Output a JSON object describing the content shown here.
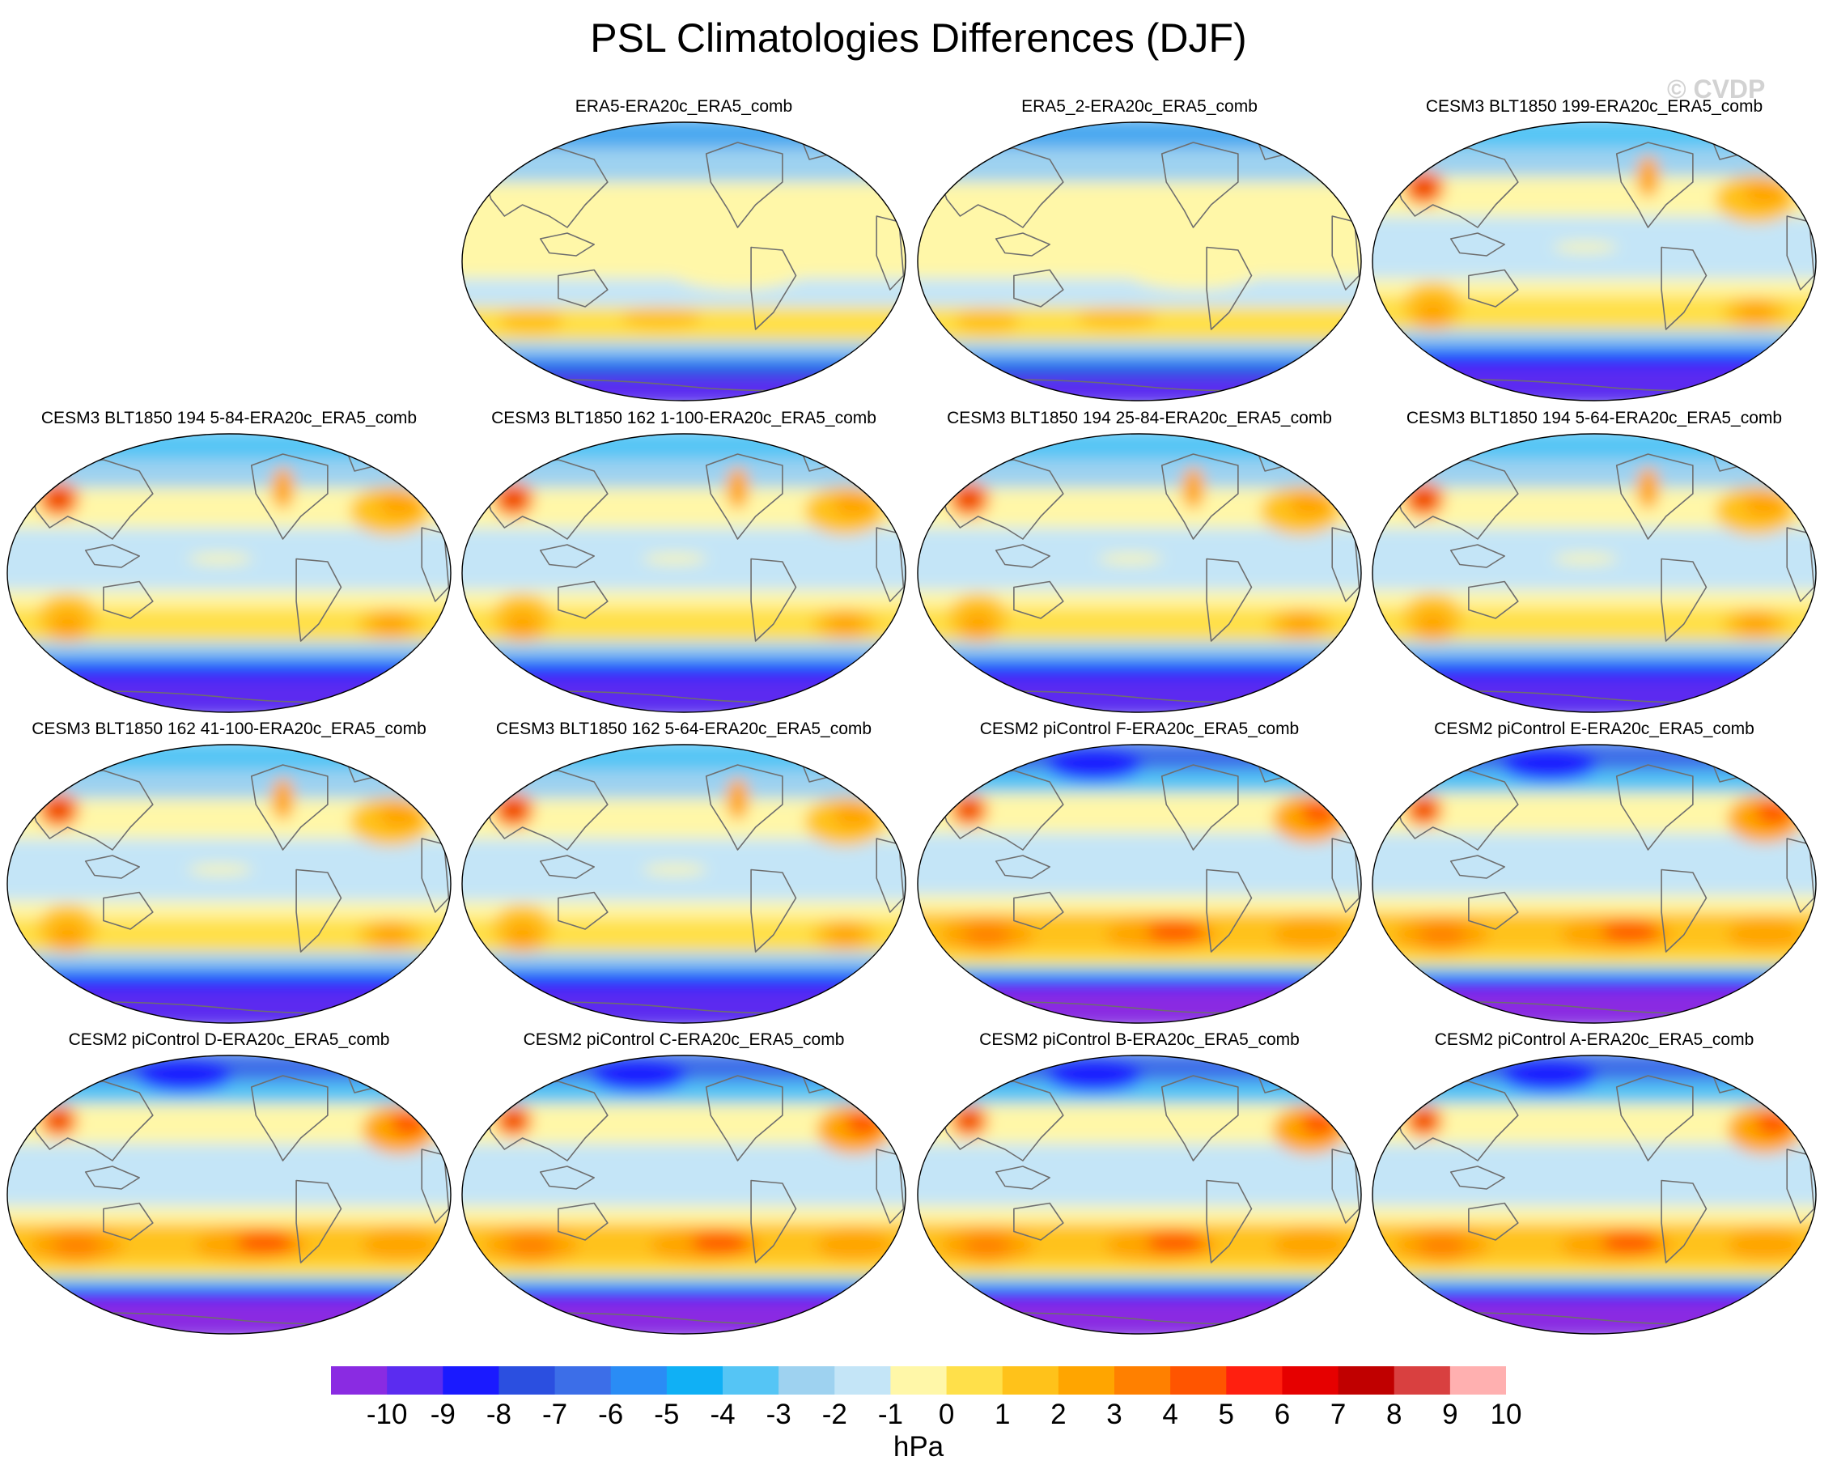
{
  "title": "PSL Climatologies Differences (DJF)",
  "watermark": "© CVDP",
  "panels": [
    {
      "title": "ERA5-ERA20c_ERA5_comb",
      "style": "reanalysis"
    },
    {
      "title": "ERA5_2-ERA20c_ERA5_comb",
      "style": "reanalysis"
    },
    {
      "title": "CESM3 BLT1850 199-ERA20c_ERA5_comb",
      "style": "cesm3"
    },
    {
      "title": "CESM3 BLT1850 194 5-84-ERA20c_ERA5_comb",
      "style": "cesm3"
    },
    {
      "title": "CESM3 BLT1850 162 1-100-ERA20c_ERA5_comb",
      "style": "cesm3"
    },
    {
      "title": "CESM3 BLT1850 194 25-84-ERA20c_ERA5_comb",
      "style": "cesm3"
    },
    {
      "title": "CESM3 BLT1850 194 5-64-ERA20c_ERA5_comb",
      "style": "cesm3"
    },
    {
      "title": "CESM3 BLT1850 162 41-100-ERA20c_ERA5_comb",
      "style": "cesm3"
    },
    {
      "title": "CESM3 BLT1850 162 5-64-ERA20c_ERA5_comb",
      "style": "cesm3"
    },
    {
      "title": "CESM2 piControl F-ERA20c_ERA5_comb",
      "style": "cesm2"
    },
    {
      "title": "CESM2 piControl E-ERA20c_ERA5_comb",
      "style": "cesm2"
    },
    {
      "title": "CESM2 piControl D-ERA20c_ERA5_comb",
      "style": "cesm2"
    },
    {
      "title": "CESM2 piControl C-ERA20c_ERA5_comb",
      "style": "cesm2"
    },
    {
      "title": "CESM2 piControl B-ERA20c_ERA5_comb",
      "style": "cesm2"
    },
    {
      "title": "CESM2 piControl A-ERA20c_ERA5_comb",
      "style": "cesm2"
    }
  ],
  "colorbar": {
    "units": "hPa",
    "labels": [
      "-10",
      "-9",
      "-8",
      "-7",
      "-6",
      "-5",
      "-4",
      "-3",
      "-2",
      "-1",
      "0",
      "1",
      "2",
      "3",
      "4",
      "5",
      "6",
      "7",
      "8",
      "9",
      "10"
    ],
    "colors": [
      "#8a2be2",
      "#5b2cf0",
      "#1a1aff",
      "#2b4fe0",
      "#3c6ee8",
      "#2a8cf5",
      "#10b0f5",
      "#55c5f5",
      "#9ed2f0",
      "#c4e5f7",
      "#fff7a8",
      "#ffe04a",
      "#ffc21a",
      "#ffa500",
      "#ff8000",
      "#ff5500",
      "#ff1f0f",
      "#e60000",
      "#c00000",
      "#d94040",
      "#ffb0b0"
    ]
  }
}
